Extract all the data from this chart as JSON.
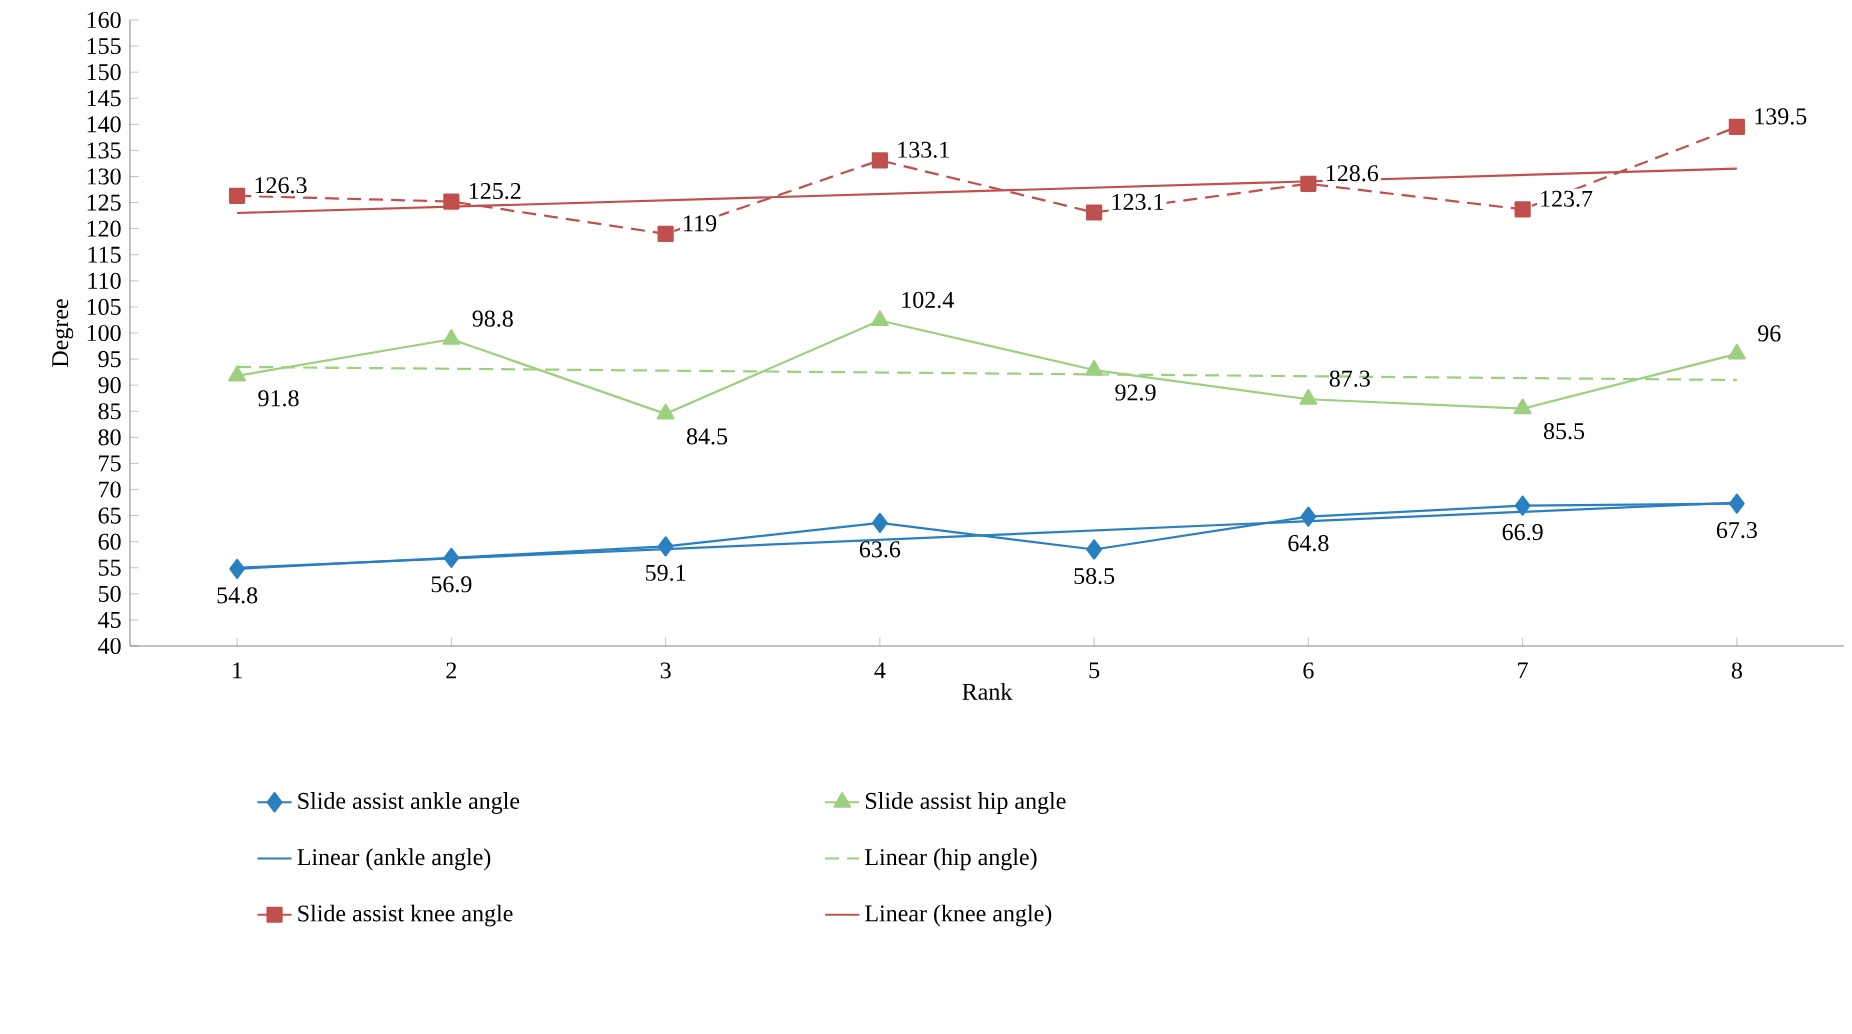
{
  "chart_data": {
    "type": "line",
    "xlabel": "Rank",
    "ylabel": "Degree",
    "xlim": [
      0.5,
      8.5
    ],
    "xticks": [
      1,
      2,
      3,
      4,
      5,
      6,
      7,
      8
    ],
    "ylim": [
      40,
      160
    ],
    "yticks": [
      40,
      45,
      50,
      55,
      60,
      65,
      70,
      75,
      80,
      85,
      90,
      95,
      100,
      105,
      110,
      115,
      120,
      125,
      130,
      135,
      140,
      145,
      150,
      155,
      160
    ],
    "legend": "bottom",
    "grid": false,
    "series": [
      {
        "name": "Slide assist ankle angle",
        "color": "#2a7fc1",
        "marker": "diamond",
        "line_style": "solid",
        "x": [
          1,
          2,
          3,
          4,
          5,
          6,
          7,
          8
        ],
        "values": [
          54.8,
          56.9,
          59.1,
          63.6,
          58.5,
          64.8,
          66.9,
          67.3
        ],
        "value_labels": [
          "54.8",
          "56.9",
          "59.1",
          "63.6",
          "58.5",
          "64.8",
          "66.9",
          "67.3"
        ]
      },
      {
        "name": "Slide assist hip angle",
        "color": "#9dcf7f",
        "marker": "triangle",
        "line_style": "solid",
        "x": [
          1,
          2,
          3,
          4,
          5,
          6,
          7,
          8
        ],
        "values": [
          91.8,
          98.8,
          84.5,
          102.4,
          92.9,
          87.3,
          85.5,
          96
        ],
        "value_labels": [
          "91.8",
          "98.8",
          "84.5",
          "102.4",
          "92.9",
          "87.3",
          "85.5",
          "96"
        ]
      },
      {
        "name": "Linear (ankle angle)",
        "color": "#2a7fc1",
        "marker": "none",
        "line_style": "solid",
        "x": [
          1,
          8
        ],
        "values": [
          55,
          67.5
        ]
      },
      {
        "name": "Linear (hip angle)",
        "color": "#9dcf7f",
        "marker": "none",
        "line_style": "dashed",
        "x": [
          1,
          8
        ],
        "values": [
          93.5,
          91
        ]
      },
      {
        "name": "Slide assist knee angle",
        "color": "#c0504d",
        "marker": "square",
        "line_style": "dashed",
        "x": [
          1,
          2,
          3,
          4,
          5,
          6,
          7,
          8
        ],
        "values": [
          126.3,
          125.2,
          119,
          133.1,
          123.1,
          128.6,
          123.7,
          139.5
        ],
        "value_labels": [
          "126.3",
          "125.2",
          "119",
          "133.1",
          "123.1",
          "128.6",
          "123.7",
          "139.5"
        ]
      },
      {
        "name": "Linear (knee angle)",
        "color": "#c0504d",
        "marker": "none",
        "line_style": "solid",
        "x": [
          1,
          8
        ],
        "values": [
          123,
          131.5
        ]
      }
    ]
  }
}
